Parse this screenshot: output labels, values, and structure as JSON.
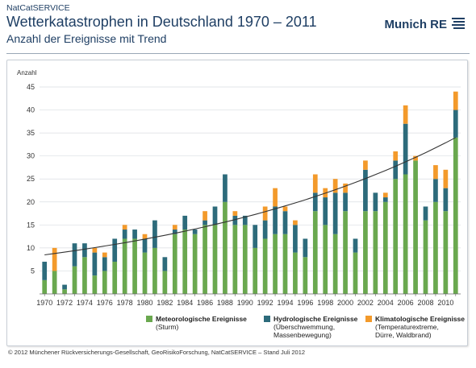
{
  "header": {
    "supertitle": "NatCatSERVICE",
    "title": "Wetterkatastrophen in Deutschland 1970 – 2011",
    "subtitle": "Anzahl der Ereignisse mit Trend",
    "logo_text": "Munich RE"
  },
  "footer": "© 2012 Münchener Rückversicherungs-Gesellschaft, GeoRisikoForschung, NatCatSERVICE – Stand Juli 2012",
  "colors": {
    "meteo": "#6aa84f",
    "hydro": "#2d6b7b",
    "klima": "#f39a2b",
    "trend": "#333333",
    "text": "#1f3f64"
  },
  "legend": [
    {
      "key": "meteo",
      "name": "Meteorologische Ereignisse",
      "note": "(Sturm)"
    },
    {
      "key": "hydro",
      "name": "Hydrologische Ereignisse",
      "note": "(Überschwemmung,\nMassenbewegung)"
    },
    {
      "key": "klima",
      "name": "Klimatologische Ereignisse",
      "note": "(Temperaturextreme,\nDürre, Waldbrand)"
    }
  ],
  "chart_data": {
    "type": "bar",
    "stacked": true,
    "ylabel": "Anzahl",
    "ylim": [
      0,
      45
    ],
    "yticks": [
      5,
      10,
      15,
      20,
      25,
      30,
      35,
      40,
      45
    ],
    "categories": [
      1970,
      1971,
      1972,
      1973,
      1974,
      1975,
      1976,
      1977,
      1978,
      1979,
      1980,
      1981,
      1982,
      1983,
      1984,
      1985,
      1986,
      1987,
      1988,
      1989,
      1990,
      1991,
      1992,
      1993,
      1994,
      1995,
      1996,
      1997,
      1998,
      1999,
      2000,
      2001,
      2002,
      2003,
      2004,
      2005,
      2006,
      2007,
      2008,
      2009,
      2010,
      2011
    ],
    "xticklabels": [
      "1970",
      "1972",
      "1974",
      "1976",
      "1978",
      "1980",
      "1982",
      "1984",
      "1986",
      "1988",
      "1990",
      "1992",
      "1994",
      "1996",
      "1998",
      "2000",
      "2002",
      "2004",
      "2006",
      "2008",
      "2010"
    ],
    "series": [
      {
        "key": "meteo",
        "values": [
          3,
          5,
          1,
          6,
          8,
          4,
          5,
          7,
          12,
          12,
          9,
          10,
          5,
          13,
          14,
          13,
          15,
          15,
          20,
          15,
          15,
          10,
          12,
          13,
          13,
          9,
          8,
          18,
          15,
          13,
          18,
          9,
          18,
          18,
          20,
          25,
          26,
          29,
          16,
          20,
          18,
          34
        ]
      },
      {
        "key": "hydro",
        "values": [
          4,
          0,
          1,
          5,
          3,
          5,
          3,
          5,
          2,
          2,
          3,
          6,
          3,
          1,
          3,
          1,
          1,
          4,
          6,
          2,
          2,
          5,
          4,
          6,
          5,
          6,
          4,
          4,
          6,
          9,
          4,
          3,
          9,
          4,
          1,
          4,
          11,
          0,
          3,
          5,
          5,
          6
        ]
      },
      {
        "key": "klima",
        "values": [
          0,
          5,
          0,
          0,
          0,
          1,
          1,
          0,
          1,
          0,
          1,
          0,
          0,
          1,
          0,
          0,
          2,
          0,
          0,
          1,
          0,
          0,
          3,
          4,
          1,
          1,
          0,
          4,
          2,
          3,
          2,
          0,
          2,
          0,
          1,
          2,
          4,
          1,
          0,
          3,
          4,
          4
        ]
      }
    ],
    "trend": {
      "start": 8.5,
      "end": 34
    }
  }
}
